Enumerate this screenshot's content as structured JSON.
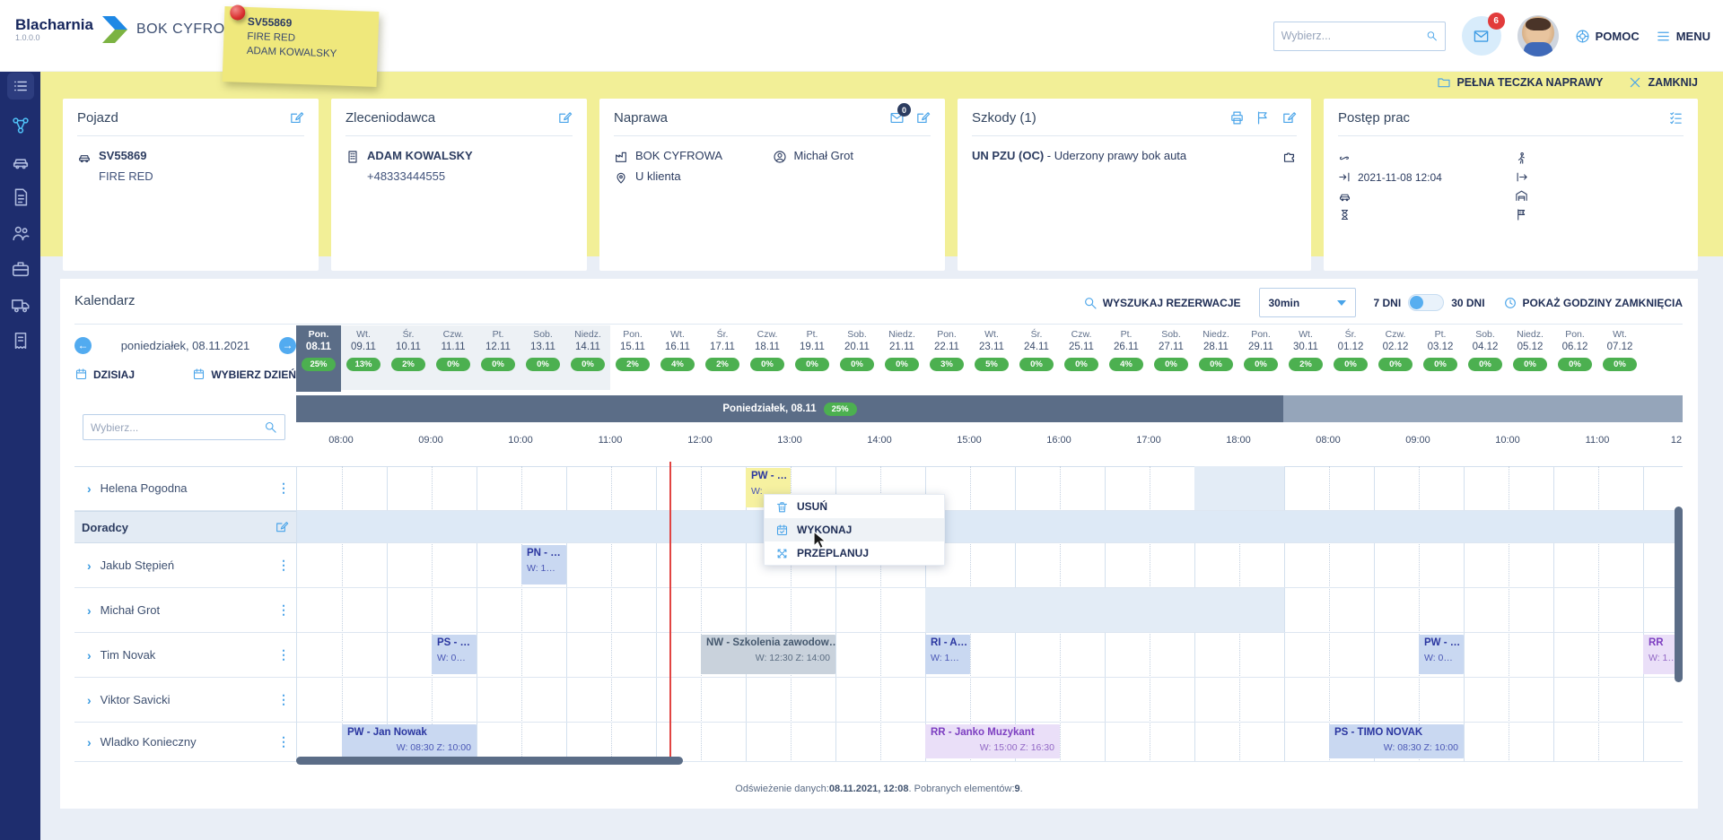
{
  "header": {
    "app_name": "Blacharnia",
    "version": "1.0.0.0",
    "app_area": "BOK CYFROWA",
    "search_placeholder": "Wybierz...",
    "mail_badge": "6",
    "help_label": "POMOC",
    "menu_label": "MENU"
  },
  "sticky_note": {
    "line1": "SV55869",
    "line2": "FIRE RED",
    "line3": "ADAM KOWALSKY"
  },
  "sidebar": {
    "icons": [
      "orders-list-icon",
      "planner-icon",
      "car-icon",
      "document-icon",
      "team-icon",
      "briefcase-icon",
      "truck-icon",
      "invoice-icon"
    ],
    "active_index": 1
  },
  "banner": {
    "full_folder_label": "PEŁNA TECZKA NAPRAWY",
    "close_label": "ZAMKNIJ"
  },
  "cards": {
    "pojazd": {
      "title": "Pojazd",
      "plate": "SV55869",
      "color": "FIRE RED"
    },
    "zleceniodawca": {
      "title": "Zleceniodawca",
      "name": "ADAM KOWALSKY",
      "phone": "+48333444555"
    },
    "naprawa": {
      "title": "Naprawa",
      "mail_badge": "0",
      "company": "BOK CYFROWA",
      "location": "U klienta",
      "advisor": "Michał Grot"
    },
    "szkody": {
      "title": "Szkody (1)",
      "code": "UN PZU (OC)",
      "desc": " - Uderzony prawy bok auta"
    },
    "postep": {
      "title": "Postęp prac",
      "rows_left": [
        {
          "icon": "keys-icon",
          "text": ""
        },
        {
          "icon": "arrival-icon",
          "text": "2021-11-08 12:04"
        },
        {
          "icon": "car-icon",
          "text": ""
        },
        {
          "icon": "hourglass-icon",
          "text": ""
        }
      ],
      "rows_right": [
        {
          "icon": "pedestrian-icon",
          "text": ""
        },
        {
          "icon": "departure-icon",
          "text": ""
        },
        {
          "icon": "garage-icon",
          "text": ""
        },
        {
          "icon": "finish-flag-icon",
          "text": ""
        }
      ]
    }
  },
  "calendar": {
    "title": "Kalendarz",
    "controls": {
      "search_label": "WYSZUKAJ REZERWACJE",
      "interval_value": "30min",
      "days7_label": "7 DNI",
      "days30_label": "30 DNI",
      "closing_label": "POKAŻ GODZINY ZAMKNIĘCIA"
    },
    "nav": {
      "date_label": "poniedziałek, 08.11.2021",
      "today_label": "DZISIAJ",
      "pick_day_label": "WYBIERZ DZIEŃ",
      "filter_placeholder": "Wybierz..."
    },
    "band": {
      "label": "Poniedziałek, 08.11",
      "pct": "25%"
    },
    "days": [
      {
        "name": "Pon.",
        "date": "08.11",
        "pct": "25%",
        "selected": true
      },
      {
        "name": "Wt.",
        "date": "09.11",
        "pct": "13%",
        "shade": true
      },
      {
        "name": "Śr.",
        "date": "10.11",
        "pct": "2%",
        "shade": true
      },
      {
        "name": "Czw.",
        "date": "11.11",
        "pct": "0%",
        "shade": true
      },
      {
        "name": "Pt.",
        "date": "12.11",
        "pct": "0%",
        "shade": true
      },
      {
        "name": "Sob.",
        "date": "13.11",
        "pct": "0%",
        "shade": true
      },
      {
        "name": "Niedz.",
        "date": "14.11",
        "pct": "0%",
        "shade": true
      },
      {
        "name": "Pon.",
        "date": "15.11",
        "pct": "2%"
      },
      {
        "name": "Wt.",
        "date": "16.11",
        "pct": "4%"
      },
      {
        "name": "Śr.",
        "date": "17.11",
        "pct": "2%"
      },
      {
        "name": "Czw.",
        "date": "18.11",
        "pct": "0%"
      },
      {
        "name": "Pt.",
        "date": "19.11",
        "pct": "0%"
      },
      {
        "name": "Sob.",
        "date": "20.11",
        "pct": "0%"
      },
      {
        "name": "Niedz.",
        "date": "21.11",
        "pct": "0%"
      },
      {
        "name": "Pon.",
        "date": "22.11",
        "pct": "3%"
      },
      {
        "name": "Wt.",
        "date": "23.11",
        "pct": "5%"
      },
      {
        "name": "Śr.",
        "date": "24.11",
        "pct": "0%"
      },
      {
        "name": "Czw.",
        "date": "25.11",
        "pct": "0%"
      },
      {
        "name": "Pt.",
        "date": "26.11",
        "pct": "4%"
      },
      {
        "name": "Sob.",
        "date": "27.11",
        "pct": "0%"
      },
      {
        "name": "Niedz.",
        "date": "28.11",
        "pct": "0%"
      },
      {
        "name": "Pon.",
        "date": "29.11",
        "pct": "0%"
      },
      {
        "name": "Wt.",
        "date": "30.11",
        "pct": "2%"
      },
      {
        "name": "Śr.",
        "date": "01.12",
        "pct": "0%"
      },
      {
        "name": "Czw.",
        "date": "02.12",
        "pct": "0%"
      },
      {
        "name": "Pt.",
        "date": "03.12",
        "pct": "0%"
      },
      {
        "name": "Sob.",
        "date": "04.12",
        "pct": "0%"
      },
      {
        "name": "Niedz.",
        "date": "05.12",
        "pct": "0%"
      },
      {
        "name": "Pon.",
        "date": "06.12",
        "pct": "0%"
      },
      {
        "name": "Wt.",
        "date": "07.12",
        "pct": "0%"
      }
    ],
    "hours_day1": [
      "08:00",
      "09:00",
      "10:00",
      "11:00",
      "12:00",
      "13:00",
      "14:00",
      "15:00",
      "16:00",
      "17:00",
      "18:00"
    ],
    "hours_day2": [
      "08:00",
      "09:00",
      "10:00",
      "11:00",
      "12"
    ],
    "rows": [
      {
        "kind": "resource",
        "name": "Helena Pogodna"
      },
      {
        "kind": "group",
        "name": "Doradcy"
      },
      {
        "kind": "resource",
        "name": "Jakub Stępień"
      },
      {
        "kind": "resource",
        "name": "Michał Grot"
      },
      {
        "kind": "resource",
        "name": "Tim Novak"
      },
      {
        "kind": "resource",
        "name": "Viktor Savicki"
      },
      {
        "kind": "resource",
        "name": "Wladko Konieczny"
      }
    ],
    "events": [
      {
        "row": 0,
        "day": 1,
        "start": 13,
        "end": 13.5,
        "color": "yellow",
        "title": "PW - …",
        "sub": "W:",
        "align": "left"
      },
      {
        "row": 2,
        "day": 1,
        "start": 10.5,
        "end": 11,
        "color": "blue",
        "title": "PN - …",
        "sub": "W: 1…",
        "align": "left"
      },
      {
        "row": 4,
        "day": 1,
        "start": 9.5,
        "end": 10,
        "color": "blue",
        "title": "PS - …",
        "sub": "W: 0…",
        "align": "left"
      },
      {
        "row": 4,
        "day": 1,
        "start": 12.5,
        "end": 14,
        "color": "gray",
        "title": "NW - Szkolenia zawodow…",
        "sub": "W: 12:30 Z: 14:00",
        "align": "right"
      },
      {
        "row": 4,
        "day": 1,
        "start": 15,
        "end": 15.5,
        "color": "blue",
        "title": "RI - A…",
        "sub": "W: 1…",
        "align": "left"
      },
      {
        "row": 4,
        "day": 2,
        "start": 9.5,
        "end": 10,
        "color": "blue",
        "title": "PW - …",
        "sub": "W: 0…",
        "align": "left"
      },
      {
        "row": 4,
        "day": 2,
        "start": 12,
        "end": 12.5,
        "color": "purple",
        "title": "RR",
        "sub": "W: 1…",
        "align": "left"
      },
      {
        "row": 6,
        "day": 1,
        "start": 8.5,
        "end": 10,
        "color": "blue",
        "title": "PW - Jan Nowak",
        "sub": "W: 08:30 Z: 10:00",
        "align": "right"
      },
      {
        "row": 6,
        "day": 1,
        "start": 15,
        "end": 16.5,
        "color": "purple",
        "title": "RR - Janko Muzykant",
        "sub": "W: 15:00 Z: 16:30",
        "align": "right"
      },
      {
        "row": 6,
        "day": 2,
        "start": 8.5,
        "end": 10,
        "color": "blue",
        "title": "PS - TIMO NOVAK",
        "sub": "W: 08:30 Z: 10:00",
        "align": "right"
      }
    ],
    "shaded_slots": [
      {
        "row": 0,
        "day": 1,
        "start": 18,
        "end": 19
      },
      {
        "row": 3,
        "day": 1,
        "start": 15,
        "end": 19
      }
    ],
    "context_menu": {
      "items": [
        {
          "icon": "trash-icon",
          "label": "USUŃ"
        },
        {
          "icon": "calendar-check-icon",
          "label": "WYKONAJ",
          "hover": true
        },
        {
          "icon": "shuffle-icon",
          "label": "PRZEPLANUJ"
        }
      ]
    },
    "footer": {
      "prefix": "Odświeżenie danych:",
      "datetime": "08.11.2021, 12:08",
      "middle": ". Pobranych elementów:",
      "count": "9",
      "suffix": "."
    }
  }
}
